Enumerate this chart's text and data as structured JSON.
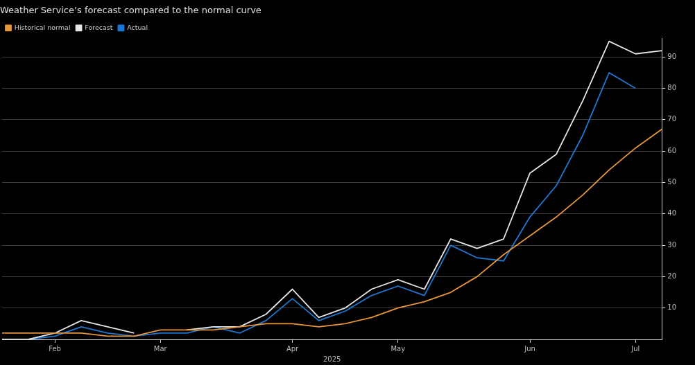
{
  "chart_data": {
    "type": "line",
    "title": "Weather Service’s forecast compared to the normal curve",
    "xlabel": "2025",
    "categories": [
      null,
      null,
      "Feb",
      null,
      null,
      null,
      "Mar",
      null,
      null,
      null,
      null,
      "Apr",
      null,
      null,
      null,
      "May",
      null,
      null,
      null,
      null,
      "Jun",
      null,
      null,
      null,
      "Jul",
      null
    ],
    "series": [
      {
        "name": "Historical normal",
        "color": "#e8963a",
        "values": [
          2,
          2,
          2,
          2,
          1,
          1,
          3,
          3,
          3,
          4,
          5,
          5,
          4,
          5,
          7,
          10,
          12,
          15,
          20,
          27,
          33,
          39,
          46,
          54,
          61,
          67
        ]
      },
      {
        "name": "Forecast",
        "color": "#e6e6e6",
        "values": [
          0,
          0,
          2,
          6,
          4,
          2,
          null,
          3,
          4,
          4,
          8,
          16,
          7,
          10,
          16,
          19,
          16,
          32,
          29,
          32,
          53,
          59,
          76,
          95,
          91,
          92
        ]
      },
      {
        "name": "Actual",
        "color": "#1e78d2",
        "values": [
          0,
          0,
          1,
          4,
          2,
          1,
          2,
          2,
          4,
          2,
          6,
          13,
          6,
          9,
          14,
          17,
          14,
          30,
          26,
          25,
          39,
          49,
          65,
          85,
          80,
          null
        ]
      }
    ],
    "ylim": [
      0,
      96
    ],
    "yticks": [
      10,
      20,
      30,
      40,
      50,
      60,
      70,
      80,
      90
    ],
    "grid": "y",
    "legend": "top left"
  }
}
